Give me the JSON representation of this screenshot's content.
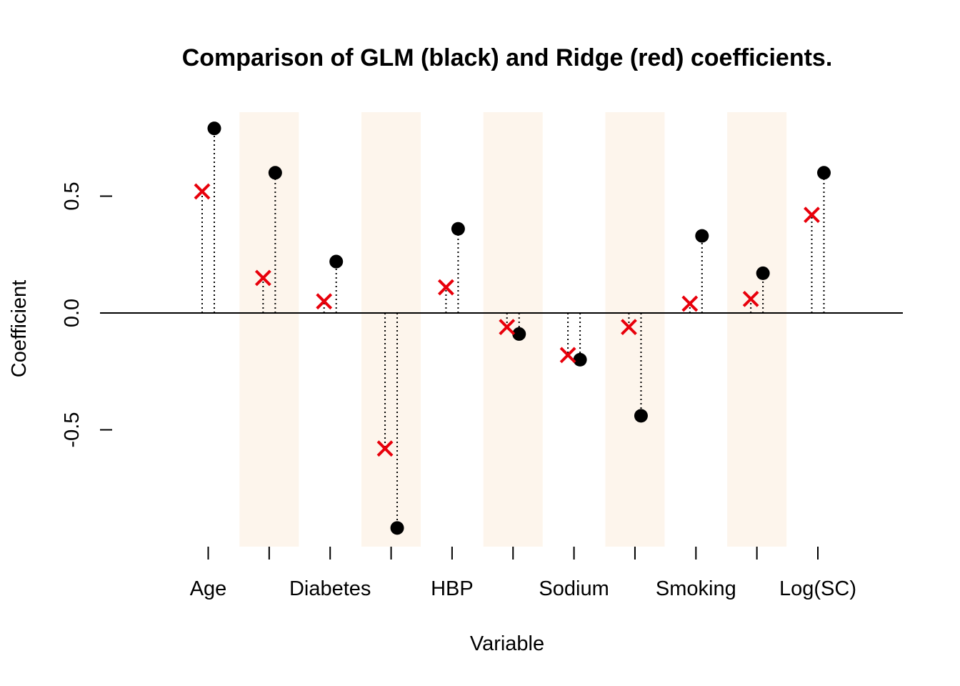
{
  "chart_data": {
    "type": "scatter",
    "title": "Comparison of GLM (black) and Ridge (red) coefficients.",
    "xlabel": "Variable",
    "ylabel": "Coefficient",
    "ylim": [
      -1.0,
      0.86
    ],
    "yticks": [
      -0.5,
      0.0,
      0.5
    ],
    "ytick_labels": [
      "-0.5",
      "0.0",
      "0.5"
    ],
    "x_tick_count": 11,
    "x_tick_labels": [
      "Age",
      "",
      "Diabetes",
      "",
      "HBP",
      "",
      "Sodium",
      "",
      "Smoking",
      "",
      "Log(SC)"
    ],
    "zero_line": true,
    "alternating_bands": true,
    "colors": {
      "glm": "#000000",
      "ridge": "#e8000b",
      "band": "#fdf5ec"
    },
    "series": [
      {
        "values": [
          0.79,
          0.6,
          0.22,
          -0.92,
          0.36,
          -0.09,
          -0.2,
          -0.44,
          0.33,
          0.17,
          0.6
        ]
      },
      {
        "values": [
          0.52,
          0.15,
          0.05,
          -0.58,
          0.11,
          -0.06,
          -0.18,
          -0.06,
          0.04,
          0.06,
          0.42
        ]
      }
    ]
  }
}
